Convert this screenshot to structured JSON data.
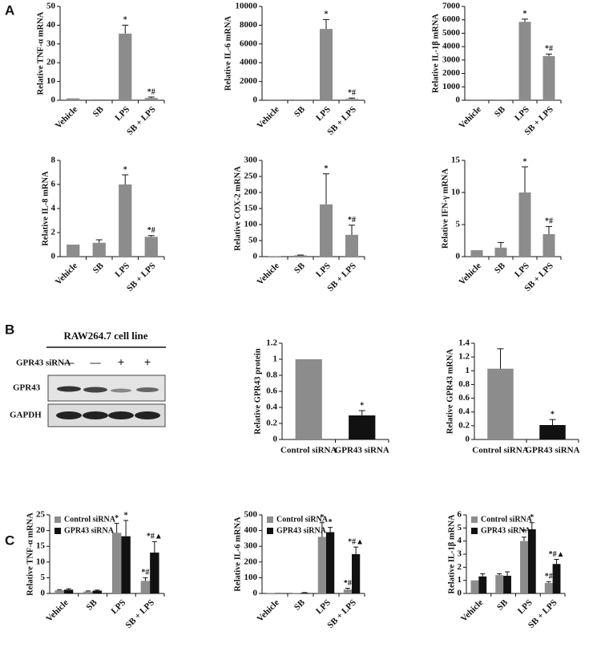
{
  "panel_labels": [
    "A",
    "B",
    "C"
  ],
  "blot": {
    "title": "RAW264.7 cell line",
    "row_label": "GPR43 siRNA",
    "lanes": [
      "—",
      "—",
      "+",
      "+"
    ],
    "bands": [
      "GPR43",
      "GAPDH"
    ]
  },
  "chart_data": [
    {
      "type": "bar",
      "ylabel": "Relative TNF-α mRNA",
      "categories": [
        "Vehicle",
        "SB",
        "LPS",
        "SB + LPS"
      ],
      "values": [
        1,
        0.5,
        35.5,
        1.2
      ],
      "errors": [
        null,
        null,
        4.5,
        0.5
      ],
      "annotations": [
        null,
        null,
        "*",
        "*#"
      ],
      "color": "#8c8c8c",
      "ylim": [
        0,
        50
      ],
      "yticks": [
        0,
        10,
        20,
        30,
        40,
        50
      ]
    },
    {
      "type": "bar",
      "ylabel": "Relative IL-6 mRNA",
      "categories": [
        "Vehicle",
        "SB",
        "LPS",
        "SB + LPS"
      ],
      "values": [
        10,
        5,
        7600,
        150
      ],
      "errors": [
        null,
        null,
        1000,
        80
      ],
      "annotations": [
        null,
        null,
        "*",
        "*#"
      ],
      "color": "#8c8c8c",
      "ylim": [
        0,
        10000
      ],
      "yticks": [
        0,
        2000,
        4000,
        6000,
        8000,
        10000
      ]
    },
    {
      "type": "bar",
      "ylabel": "Relative IL-1β mRNA",
      "categories": [
        "Vehicle",
        "SB",
        "LPS",
        "SB + LPS"
      ],
      "values": [
        5,
        5,
        5850,
        3300
      ],
      "errors": [
        null,
        null,
        200,
        150
      ],
      "annotations": [
        null,
        null,
        "*",
        "*#"
      ],
      "color": "#8c8c8c",
      "ylim": [
        0,
        7000
      ],
      "yticks": [
        0,
        1000,
        2000,
        3000,
        4000,
        5000,
        6000,
        7000
      ]
    },
    {
      "type": "bar",
      "ylabel": "Relative IL-8 mRNA",
      "categories": [
        "Vehicle",
        "SB",
        "LPS",
        "SB + LPS"
      ],
      "values": [
        1,
        1.15,
        6,
        1.65
      ],
      "errors": [
        null,
        0.25,
        0.8,
        0.1
      ],
      "annotations": [
        null,
        null,
        "*",
        "*#"
      ],
      "color": "#8c8c8c",
      "ylim": [
        0,
        8
      ],
      "yticks": [
        0,
        2,
        4,
        6,
        8
      ]
    },
    {
      "type": "bar",
      "ylabel": "Relative COX-2 mRNA",
      "categories": [
        "Vehicle",
        "SB",
        "LPS",
        "SB + LPS"
      ],
      "values": [
        1,
        4,
        163,
        68
      ],
      "errors": [
        null,
        1,
        95,
        30
      ],
      "annotations": [
        null,
        null,
        "*",
        "*#"
      ],
      "color": "#8c8c8c",
      "ylim": [
        0,
        300
      ],
      "yticks": [
        0,
        50,
        100,
        150,
        200,
        250,
        300
      ]
    },
    {
      "type": "bar",
      "ylabel": "Relative IFN-γ mRNA",
      "categories": [
        "Vehicle",
        "SB",
        "LPS",
        "SB + LPS"
      ],
      "values": [
        1,
        1.4,
        10,
        3.5
      ],
      "errors": [
        null,
        0.8,
        4,
        1.2
      ],
      "annotations": [
        null,
        null,
        "*",
        "*#"
      ],
      "color": "#8c8c8c",
      "ylim": [
        0,
        15
      ],
      "yticks": [
        0,
        5,
        10,
        15
      ]
    },
    {
      "type": "bar",
      "ylabel": "Relative GPR43 protein",
      "categories": [
        "Control siRNA",
        "GPR43 siRNA"
      ],
      "values": [
        1,
        0.3
      ],
      "errors": [
        null,
        0.06
      ],
      "annotations": [
        null,
        "*"
      ],
      "colors": [
        "#8c8c8c",
        "#111111"
      ],
      "ylim": [
        0,
        1.2
      ],
      "yticks": [
        0,
        0.2,
        0.4,
        0.6,
        0.8,
        1,
        1.2
      ]
    },
    {
      "type": "bar",
      "ylabel": "Relative GPR43 mRNA",
      "categories": [
        "Control siRNA",
        "GPR43 siRNA"
      ],
      "values": [
        1.03,
        0.21
      ],
      "errors": [
        0.29,
        0.08
      ],
      "annotations": [
        null,
        "*"
      ],
      "colors": [
        "#8c8c8c",
        "#111111"
      ],
      "ylim": [
        0,
        1.4
      ],
      "yticks": [
        0,
        0.2,
        0.4,
        0.6,
        0.8,
        1,
        1.2,
        1.4
      ]
    },
    {
      "type": "grouped_bar",
      "ylabel": "Relative TNF-α mRNA",
      "categories": [
        "Vehicle",
        "SB",
        "LPS",
        "SB + LPS"
      ],
      "legend": "upper left",
      "ylim": [
        0,
        25
      ],
      "yticks": [
        0,
        5,
        10,
        15,
        20,
        25
      ],
      "series": [
        {
          "name": "Control siRNA",
          "color": "#8c8c8c",
          "values": [
            1,
            0.6,
            19.3,
            4
          ],
          "errors": [
            0.2,
            0.2,
            3,
            1
          ],
          "annotations": [
            null,
            null,
            "*",
            "*#"
          ]
        },
        {
          "name": "GPR43 siRNA",
          "color": "#111111",
          "values": [
            1.2,
            0.9,
            18.2,
            13
          ],
          "errors": [
            0.3,
            0.2,
            5,
            3.5
          ],
          "annotations": [
            null,
            null,
            "*",
            "*#▲"
          ]
        }
      ]
    },
    {
      "type": "grouped_bar",
      "ylabel": "Relative IL-6 mRNA",
      "categories": [
        "Vehicle",
        "SB",
        "LPS",
        "SB + LPS"
      ],
      "legend": "upper left",
      "ylim": [
        0,
        500
      ],
      "yticks": [
        0,
        100,
        200,
        300,
        400,
        500
      ],
      "series": [
        {
          "name": "Control siRNA",
          "color": "#8c8c8c",
          "values": [
            2,
            3,
            360,
            25
          ],
          "errors": [
            null,
            null,
            90,
            8
          ],
          "annotations": [
            null,
            null,
            "*",
            "*#"
          ]
        },
        {
          "name": "GPR43 siRNA",
          "color": "#111111",
          "values": [
            2,
            4,
            390,
            250
          ],
          "errors": [
            null,
            2,
            30,
            45
          ],
          "annotations": [
            null,
            null,
            "*",
            "*#▲"
          ]
        }
      ]
    },
    {
      "type": "grouped_bar",
      "ylabel": "Relative IL-1β mRNA",
      "categories": [
        "Vehicle",
        "SB",
        "LPS",
        "SB + LPS"
      ],
      "legend": "upper left",
      "ylim": [
        0,
        6
      ],
      "yticks": [
        0,
        1,
        2,
        3,
        4,
        5,
        6
      ],
      "series": [
        {
          "name": "Control siRNA",
          "color": "#8c8c8c",
          "values": [
            1,
            1.4,
            4,
            0.8
          ],
          "errors": [
            null,
            0.1,
            0.3,
            0.1
          ],
          "annotations": [
            null,
            null,
            "*",
            "*#"
          ]
        },
        {
          "name": "GPR43 siRNA",
          "color": "#111111",
          "values": [
            1.3,
            1.35,
            4.9,
            2.25
          ],
          "errors": [
            0.2,
            0.3,
            0.5,
            0.35
          ],
          "annotations": [
            null,
            null,
            "*",
            "*#▲"
          ]
        }
      ]
    }
  ]
}
